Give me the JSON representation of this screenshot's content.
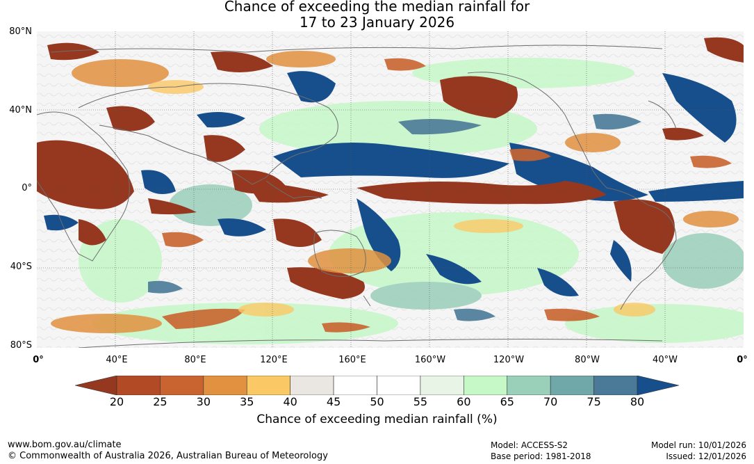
{
  "title": {
    "line1": "Chance of exceeding the median rainfall for",
    "line2": "17 to 23 January 2026"
  },
  "map": {
    "lat_labels": [
      "80°N",
      "40°N",
      "0°",
      "40°S",
      "80°S"
    ],
    "lon_labels": [
      "0°",
      "40°E",
      "80°E",
      "120°E",
      "160°E",
      "160°W",
      "120°W",
      "80°W",
      "40°W",
      "0°"
    ]
  },
  "colorbar": {
    "ticks": [
      "20",
      "25",
      "30",
      "35",
      "40",
      "45",
      "50",
      "55",
      "60",
      "65",
      "70",
      "75",
      "80"
    ],
    "colors": [
      "#963820",
      "#b24a26",
      "#c96430",
      "#e1913f",
      "#fbc866",
      "#eae6e2",
      "#ffffff",
      "#ffffff",
      "#e8f4e6",
      "#c6f7c7",
      "#9acfba",
      "#70a7a9",
      "#4a7a98",
      "#174f8d"
    ],
    "label": "Chance of exceeding median rainfall (%)"
  },
  "footer": {
    "website": "www.bom.gov.au/climate",
    "copyright": "© Commonwealth of Australia 2026, Australian Bureau of Meteorology",
    "model": "Model: ACCESS-S2",
    "base_period": "Base period: 1981-2018",
    "model_run": "Model run: 10/01/2026",
    "issued": "Issued: 12/01/2026"
  }
}
